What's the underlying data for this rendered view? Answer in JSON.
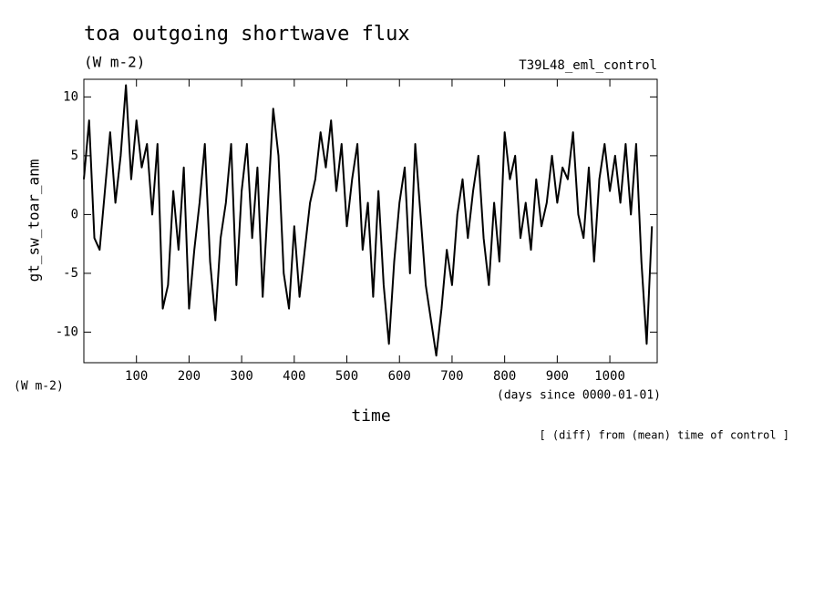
{
  "chart_data": {
    "type": "line",
    "title": "toa outgoing shortwave flux",
    "subtitle": "(W m-2)",
    "run_label": "T39L48_eml_control",
    "y_label": "gt_sw_toar_anm",
    "y_unit": "(W m-2)",
    "x_label": "time",
    "x_unit": "(days since 0000-01-01)",
    "note": "[ (diff) from (mean) time of control ]",
    "x": [
      0,
      10,
      20,
      30,
      40,
      50,
      60,
      70,
      80,
      90,
      100,
      110,
      120,
      130,
      140,
      150,
      160,
      170,
      180,
      190,
      200,
      210,
      220,
      230,
      240,
      250,
      260,
      270,
      280,
      290,
      300,
      310,
      320,
      330,
      340,
      350,
      360,
      370,
      380,
      390,
      400,
      410,
      420,
      430,
      440,
      450,
      460,
      470,
      480,
      490,
      500,
      510,
      520,
      530,
      540,
      550,
      560,
      570,
      580,
      590,
      600,
      610,
      620,
      630,
      640,
      650,
      660,
      670,
      680,
      690,
      700,
      710,
      720,
      730,
      740,
      750,
      760,
      770,
      780,
      790,
      800,
      810,
      820,
      830,
      840,
      850,
      860,
      870,
      880,
      890,
      900,
      910,
      920,
      930,
      940,
      950,
      960,
      970,
      980,
      990,
      1000,
      1010,
      1020,
      1030,
      1040,
      1050,
      1060,
      1070,
      1080
    ],
    "series": [
      {
        "name": "gt_sw_toar_anm",
        "color": "#000000",
        "values": [
          3,
          8,
          -2,
          -3,
          2,
          7,
          1,
          5,
          11,
          3,
          8,
          4,
          6,
          0,
          6,
          -8,
          -6,
          2,
          -3,
          4,
          -8,
          -3,
          1,
          6,
          -4,
          -9,
          -2,
          1,
          6,
          -6,
          2,
          6,
          -2,
          4,
          -7,
          1,
          9,
          5,
          -5,
          -8,
          -1,
          -7,
          -3,
          1,
          3,
          7,
          4,
          8,
          2,
          6,
          -1,
          3,
          6,
          -3,
          1,
          -7,
          2,
          -6,
          -11,
          -4,
          1,
          4,
          -5,
          6,
          0,
          -6,
          -9,
          -12,
          -8,
          -3,
          -6,
          0,
          3,
          -2,
          2,
          5,
          -2,
          -6,
          1,
          -4,
          7,
          3,
          5,
          -2,
          1,
          -3,
          3,
          -1,
          1,
          5,
          1,
          4,
          3,
          7,
          0,
          -2,
          4,
          -4,
          3,
          6,
          2,
          5,
          1,
          6,
          0,
          6,
          -4,
          -11,
          -1
        ]
      }
    ],
    "xlim": [
      0,
      1090
    ],
    "ylim": [
      -12.6,
      11.5
    ],
    "xticks": [
      100,
      200,
      300,
      400,
      500,
      600,
      700,
      800,
      900,
      1000
    ],
    "yticks": [
      -10,
      -5,
      0,
      5,
      10
    ]
  }
}
